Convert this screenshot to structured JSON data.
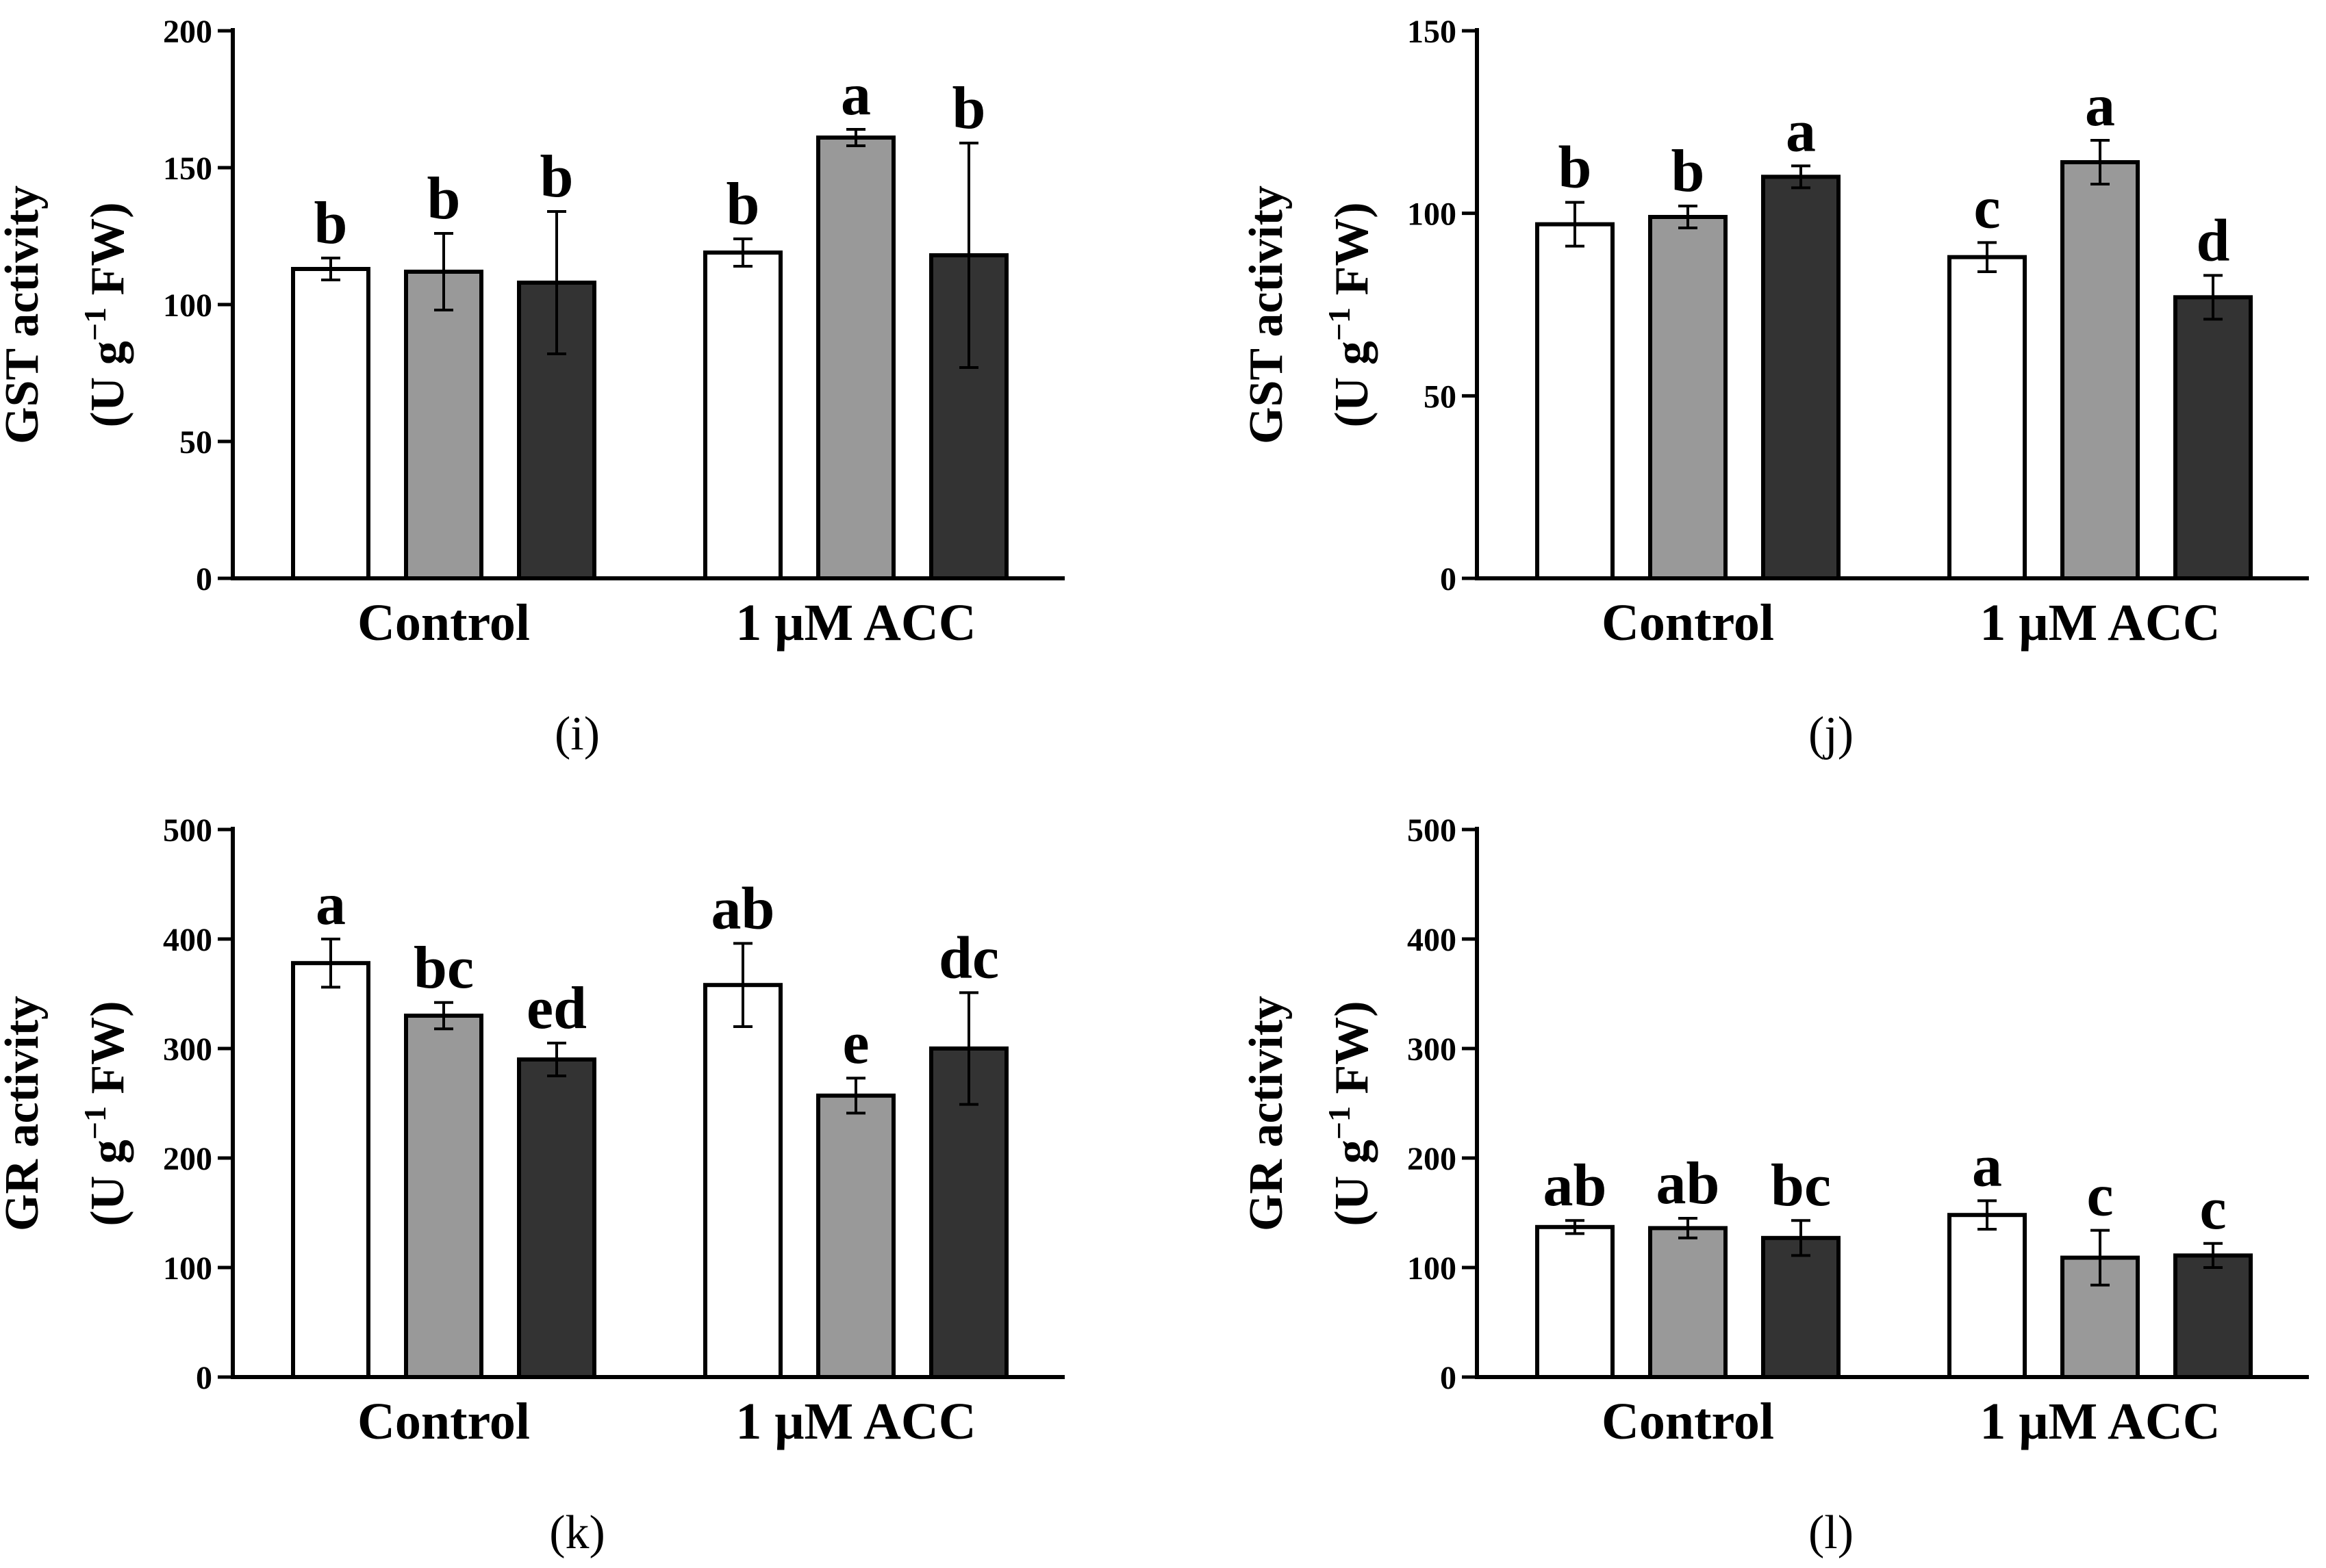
{
  "chart_data": [
    {
      "type": "bar",
      "panel": "(i)",
      "ylabel_line1": "GST activity",
      "ylabel_line2": "(U g",
      "ylabel_sup": "−1",
      "ylabel_line2_end": " FW)",
      "ylim": [
        0,
        200
      ],
      "yticks": [
        "0",
        "50",
        "100",
        "150",
        "200"
      ],
      "categories": [
        "Control",
        "1 μM ACC"
      ],
      "series": [
        {
          "name": "white",
          "color": "#ffffff",
          "values": [
            113,
            119
          ],
          "errors": [
            4,
            5
          ],
          "letters": [
            "b",
            "b"
          ]
        },
        {
          "name": "gray",
          "color": "#999999",
          "values": [
            112,
            161
          ],
          "errors": [
            14,
            3
          ],
          "letters": [
            "b",
            "a"
          ]
        },
        {
          "name": "dark",
          "color": "#333333",
          "values": [
            108,
            118
          ],
          "errors": [
            26,
            41
          ],
          "letters": [
            "b",
            "b"
          ]
        }
      ]
    },
    {
      "type": "bar",
      "panel": "(j)",
      "ylabel_line1": "GST activity",
      "ylabel_line2": "(U g",
      "ylabel_sup": "−1",
      "ylabel_line2_end": " FW)",
      "ylim": [
        0,
        150
      ],
      "yticks": [
        "0",
        "50",
        "100",
        "150"
      ],
      "categories": [
        "Control",
        "1 μM ACC"
      ],
      "series": [
        {
          "name": "white",
          "color": "#ffffff",
          "values": [
            97,
            88
          ],
          "errors": [
            6,
            4
          ],
          "letters": [
            "b",
            "c"
          ]
        },
        {
          "name": "gray",
          "color": "#999999",
          "values": [
            99,
            114
          ],
          "errors": [
            3,
            6
          ],
          "letters": [
            "b",
            "a"
          ]
        },
        {
          "name": "dark",
          "color": "#333333",
          "values": [
            110,
            77
          ],
          "errors": [
            3,
            6
          ],
          "letters": [
            "a",
            "d"
          ]
        }
      ]
    },
    {
      "type": "bar",
      "panel": "(k)",
      "ylabel_line1": "GR activity",
      "ylabel_line2": "(U g",
      "ylabel_sup": "−1",
      "ylabel_line2_end": " FW)",
      "ylim": [
        0,
        500
      ],
      "yticks": [
        "0",
        "100",
        "200",
        "300",
        "400",
        "500"
      ],
      "categories": [
        "Control",
        "1 μM ACC"
      ],
      "series": [
        {
          "name": "white",
          "color": "#ffffff",
          "values": [
            378,
            358
          ],
          "errors": [
            22,
            38
          ],
          "letters": [
            "a",
            "ab"
          ]
        },
        {
          "name": "gray",
          "color": "#999999",
          "values": [
            330,
            257
          ],
          "errors": [
            12,
            16
          ],
          "letters": [
            "bc",
            "e"
          ]
        },
        {
          "name": "dark",
          "color": "#333333",
          "values": [
            290,
            300
          ],
          "errors": [
            15,
            51
          ],
          "letters": [
            "ed",
            "dc"
          ]
        }
      ]
    },
    {
      "type": "bar",
      "panel": "(l)",
      "ylabel_line1": "GR activity",
      "ylabel_line2": "(U g",
      "ylabel_sup": "−1",
      "ylabel_line2_end": " FW)",
      "ylim": [
        0,
        500
      ],
      "yticks": [
        "0",
        "100",
        "200",
        "300",
        "400",
        "500"
      ],
      "categories": [
        "Control",
        "1 μM ACC"
      ],
      "series": [
        {
          "name": "white",
          "color": "#ffffff",
          "values": [
            137,
            148
          ],
          "errors": [
            6,
            13
          ],
          "letters": [
            "ab",
            "a"
          ]
        },
        {
          "name": "gray",
          "color": "#999999",
          "values": [
            136,
            109
          ],
          "errors": [
            9,
            25
          ],
          "letters": [
            "ab",
            "c"
          ]
        },
        {
          "name": "dark",
          "color": "#333333",
          "values": [
            127,
            111
          ],
          "errors": [
            16,
            11
          ],
          "letters": [
            "bc",
            "c"
          ]
        }
      ]
    }
  ]
}
